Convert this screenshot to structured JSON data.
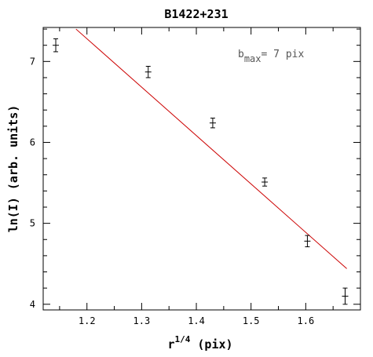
{
  "chart_data": {
    "type": "scatter",
    "title": "B1422+231",
    "xlabel": {
      "base": "r",
      "exponent": "1/4",
      "unit": " (pix)"
    },
    "ylabel": "ln(I)  (arb. units)",
    "xlim": [
      1.12,
      1.7
    ],
    "ylim": [
      3.93,
      7.42
    ],
    "x_ticks": [
      1.2,
      1.3,
      1.4,
      1.5,
      1.6
    ],
    "x_tick_labels": [
      "1.2",
      "1.3",
      "1.4",
      "1.5",
      "1.6"
    ],
    "y_ticks": [
      4,
      5,
      6,
      7
    ],
    "y_tick_labels": [
      "4",
      "5",
      "6",
      "7"
    ],
    "annotation": {
      "prefix": "b",
      "subscript": "max",
      "suffix": "= 7 pix"
    },
    "points": [
      {
        "x": 1.143,
        "y": 7.2,
        "err": 0.08
      },
      {
        "x": 1.312,
        "y": 6.87,
        "err": 0.07
      },
      {
        "x": 1.43,
        "y": 6.24,
        "err": 0.06
      },
      {
        "x": 1.525,
        "y": 5.51,
        "err": 0.05
      },
      {
        "x": 1.603,
        "y": 4.78,
        "err": 0.07
      },
      {
        "x": 1.672,
        "y": 4.1,
        "err": 0.1
      }
    ],
    "fit_line": {
      "x": [
        1.18,
        1.675
      ],
      "y": [
        7.4,
        4.44
      ]
    },
    "colors": {
      "points": "#000000",
      "fit": "#cc0000",
      "axes": "#000000"
    }
  }
}
